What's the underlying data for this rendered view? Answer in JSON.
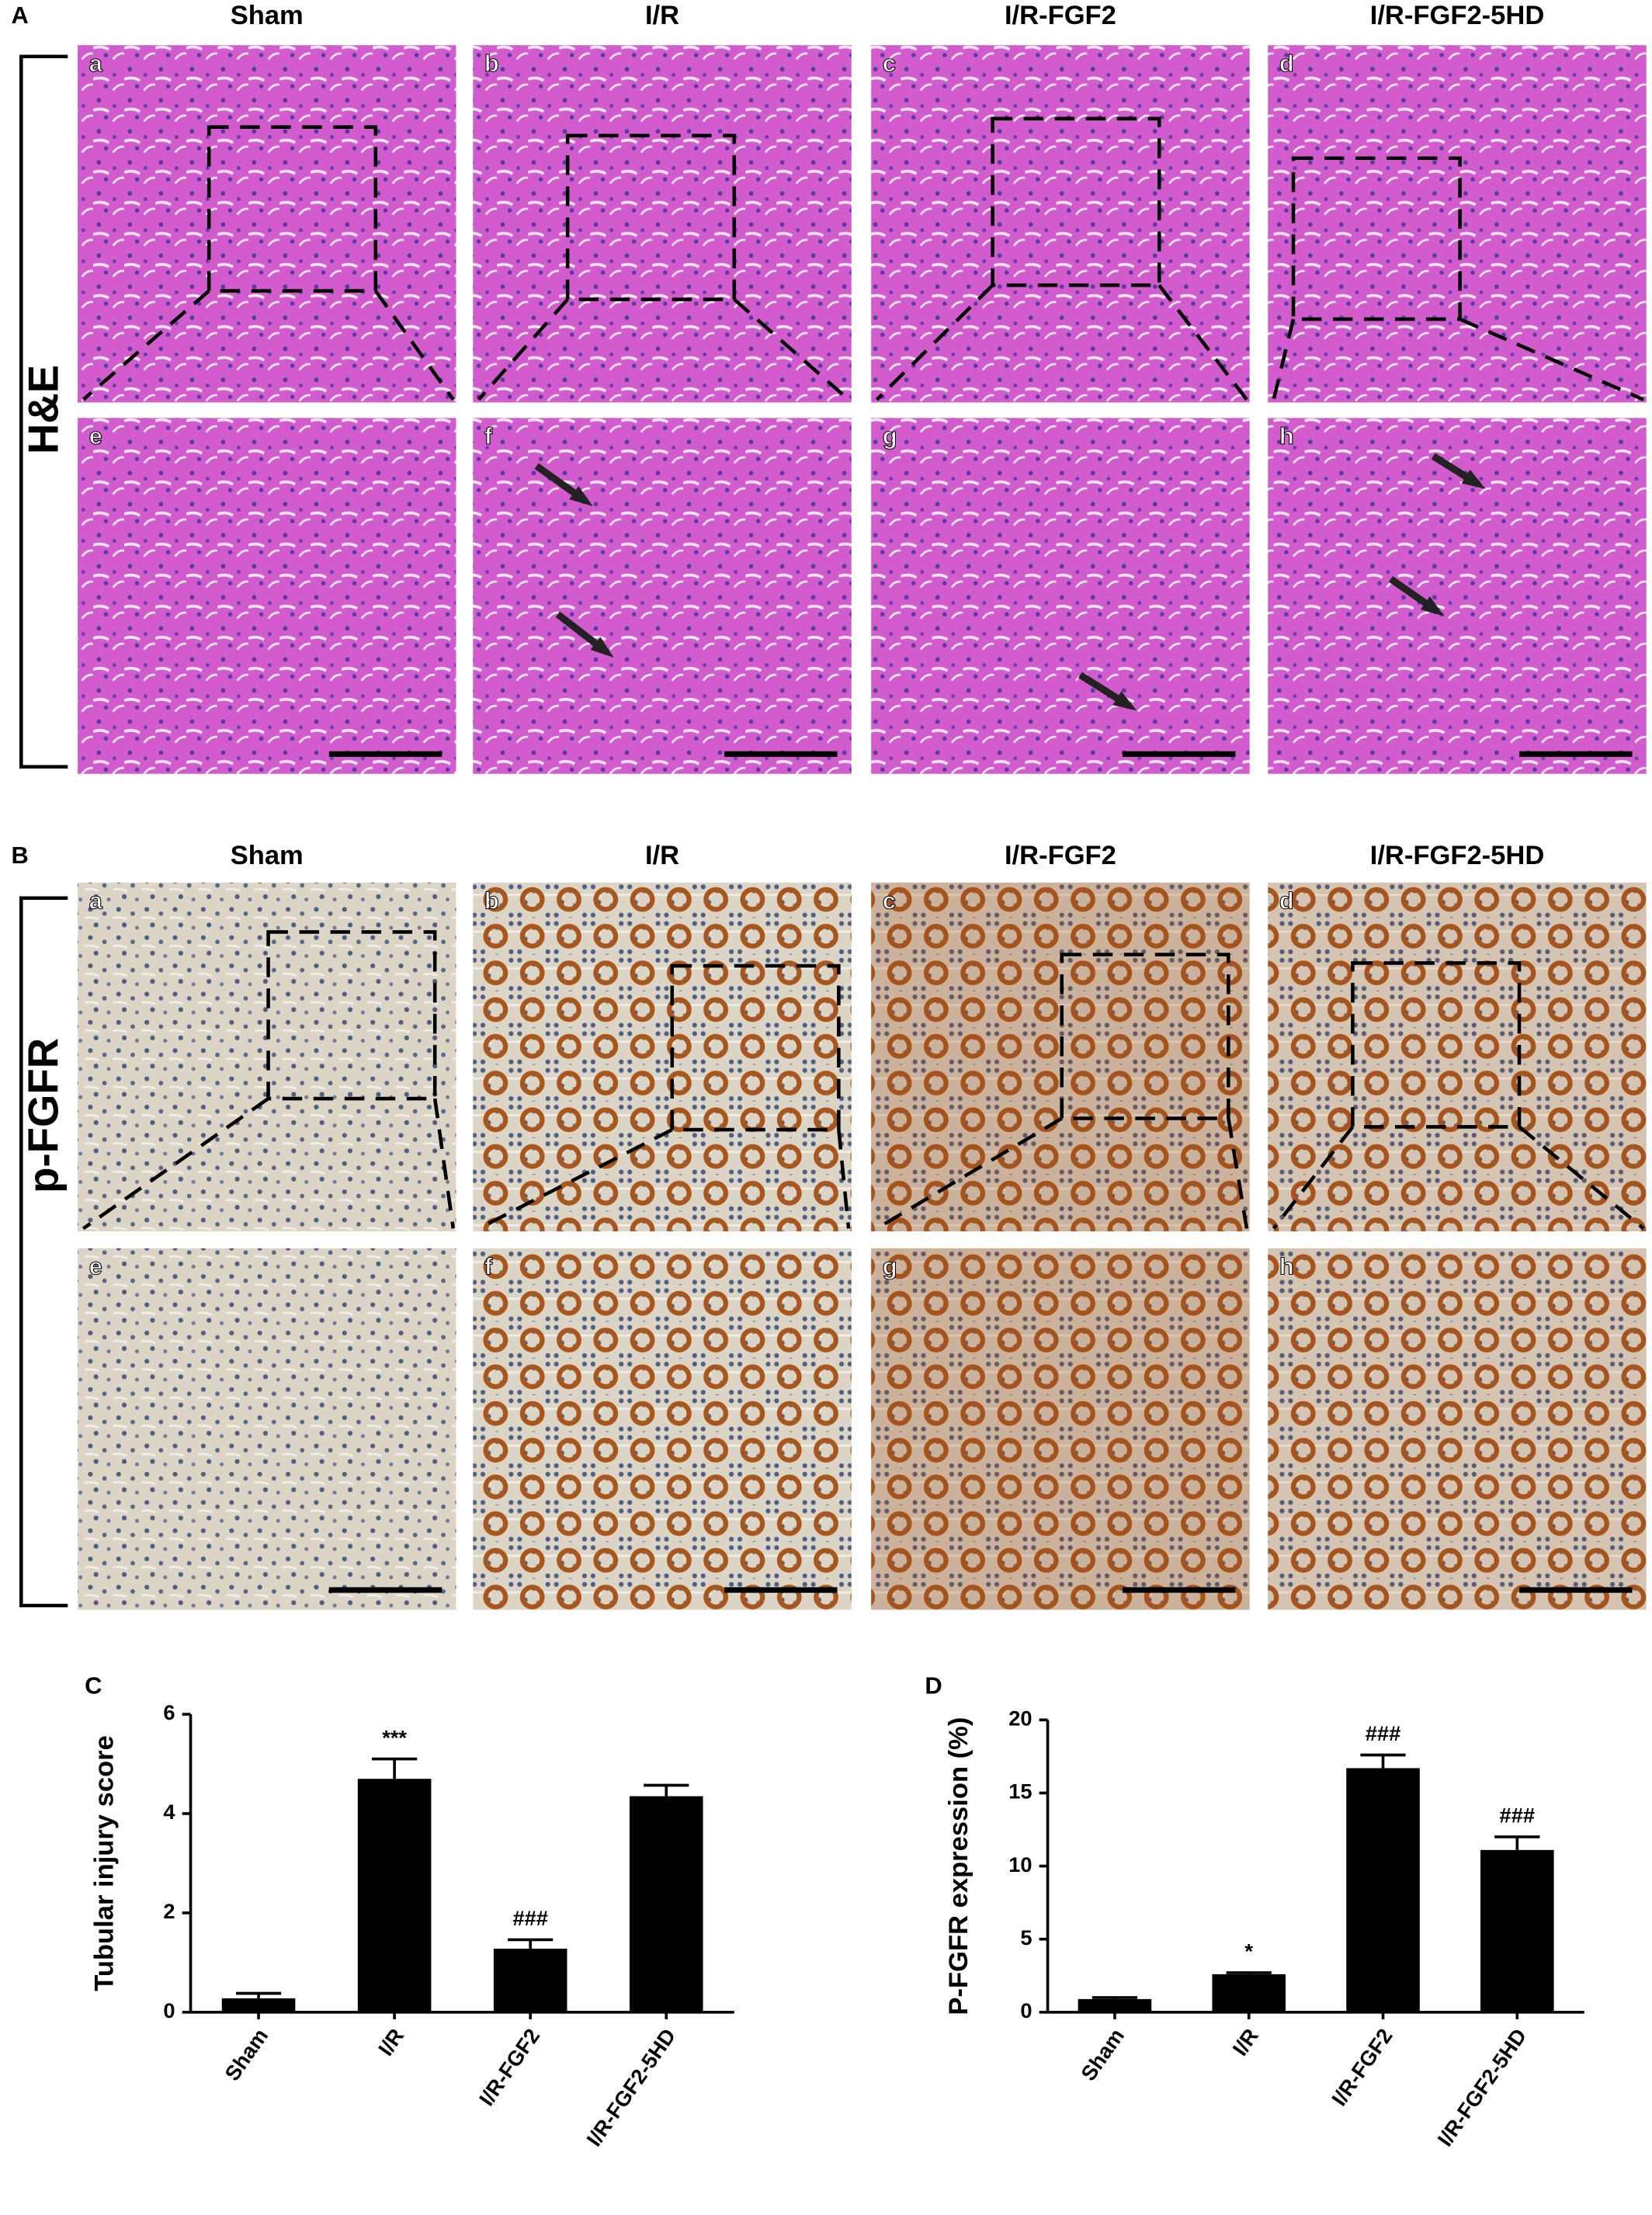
{
  "panel_A": {
    "label": "A",
    "row_label": "H&E",
    "columns": [
      "Sham",
      "I/R",
      "I/R-FGF2",
      "I/R-FGF2-5HD"
    ],
    "letters": [
      "a",
      "b",
      "c",
      "d",
      "e",
      "f",
      "g",
      "h"
    ]
  },
  "panel_B": {
    "label": "B",
    "row_label": "p-FGFR",
    "columns": [
      "Sham",
      "I/R",
      "I/R-FGF2",
      "I/R-FGF2-5HD"
    ],
    "letters": [
      "a",
      "b",
      "c",
      "d",
      "e",
      "f",
      "g",
      "h"
    ]
  },
  "chart_data": [
    {
      "type": "bar",
      "panel": "C",
      "ylabel": "Tubular injury score",
      "categories": [
        "Sham",
        "I/R",
        "I/R-FGF2",
        "I/R-FGF2-5HD"
      ],
      "values": [
        0.28,
        4.7,
        1.28,
        4.35
      ],
      "errors": [
        0.1,
        0.4,
        0.18,
        0.22
      ],
      "annotations": [
        null,
        "***",
        "###",
        null
      ],
      "color": "#000000",
      "ylim": [
        0,
        6
      ],
      "yticks": [
        0,
        2,
        4,
        6
      ]
    },
    {
      "type": "bar",
      "panel": "D",
      "ylabel": "P-FGFR expression (%)",
      "categories": [
        "Sham",
        "I/R",
        "I/R-FGF2",
        "I/R-FGF2-5HD"
      ],
      "values": [
        0.9,
        2.6,
        16.7,
        11.1
      ],
      "errors": [
        0.1,
        0.1,
        0.9,
        0.9
      ],
      "annotations": [
        null,
        "*",
        "###",
        "###"
      ],
      "color": "#000000",
      "ylim": [
        0,
        20
      ],
      "yticks": [
        0,
        5,
        10,
        15,
        20
      ]
    }
  ]
}
